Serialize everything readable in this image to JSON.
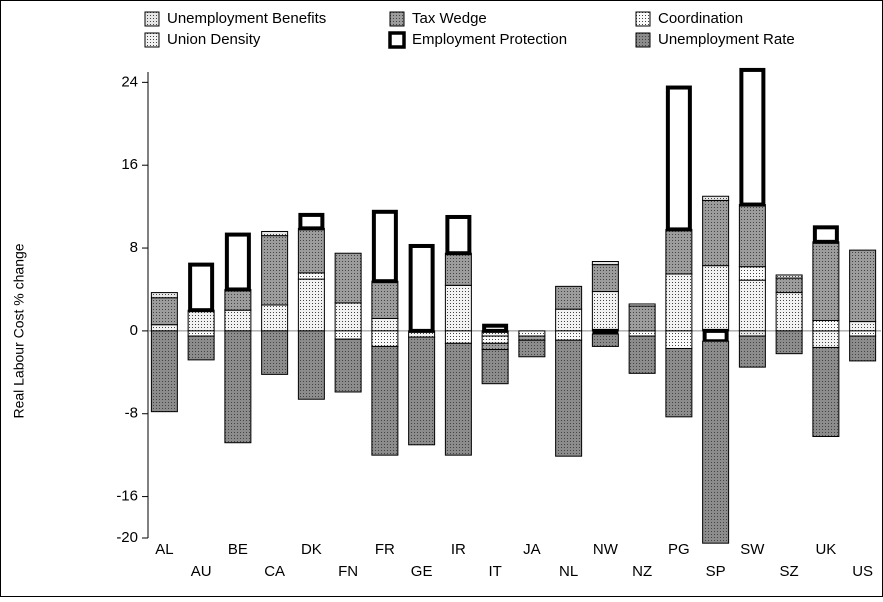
{
  "chart_data": {
    "type": "stacked-bar",
    "y_label": "Real Labour Cost % change",
    "categories": [
      "AL",
      "AU",
      "BE",
      "CA",
      "DK",
      "FN",
      "FR",
      "GE",
      "IR",
      "IT",
      "JA",
      "NL",
      "NW",
      "NZ",
      "PG",
      "SP",
      "SW",
      "SZ",
      "UK",
      "US"
    ],
    "series": [
      {
        "name": "Unemployment Benefits",
        "color": "#e6e6e6",
        "values": [
          0.5,
          0,
          0,
          0.4,
          0,
          0,
          0,
          0,
          0,
          0,
          0,
          0,
          0.3,
          0.2,
          0,
          0.4,
          -0.5,
          0.3,
          0,
          0
        ]
      },
      {
        "name": "Tax Wedge",
        "color": "#9c9c9c",
        "values": [
          2.6,
          0,
          2.0,
          6.7,
          4.3,
          4.8,
          3.6,
          0,
          3.1,
          -0.6,
          -0.4,
          2.2,
          2.6,
          2.4,
          4.3,
          6.3,
          6.0,
          1.4,
          7.6,
          6.9
        ]
      },
      {
        "name": "Coordination",
        "color": "#fafafa",
        "values": [
          0,
          -0.5,
          0,
          0,
          0.6,
          -0.8,
          -1.5,
          0,
          -1.2,
          -0.7,
          -0.5,
          -0.9,
          0,
          -0.5,
          -1.7,
          0,
          1.3,
          0,
          1.0,
          -0.5
        ]
      },
      {
        "name": "Union Density",
        "color": "#f2f2f2",
        "values": [
          0.6,
          2.0,
          2.0,
          2.5,
          5.0,
          2.7,
          1.2,
          -0.6,
          4.4,
          -0.5,
          0,
          2.1,
          3.8,
          0,
          5.5,
          6.3,
          4.9,
          3.7,
          -1.6,
          0.9
        ]
      },
      {
        "name": "Employment Protection",
        "color": "#ffffff",
        "thick_border": true,
        "values": [
          0,
          4.4,
          5.3,
          0,
          1.3,
          0,
          6.7,
          8.2,
          3.5,
          0.5,
          0,
          0,
          -0.3,
          0,
          13.7,
          -1.0,
          13.0,
          0,
          1.4,
          0
        ]
      },
      {
        "name": "Unemployment Rate",
        "color": "#8c8c8c",
        "values": [
          -7.8,
          -2.3,
          -10.8,
          -4.2,
          -6.6,
          -5.1,
          -10.5,
          -10.4,
          -10.8,
          -3.3,
          -1.6,
          -11.2,
          -1.2,
          -3.6,
          -6.6,
          -19.5,
          -3.0,
          -2.2,
          -8.6,
          -2.4
        ]
      }
    ],
    "ylim": [
      -20,
      25
    ],
    "yticks": [
      24,
      16,
      8,
      0,
      -8,
      -16,
      -20
    ]
  }
}
